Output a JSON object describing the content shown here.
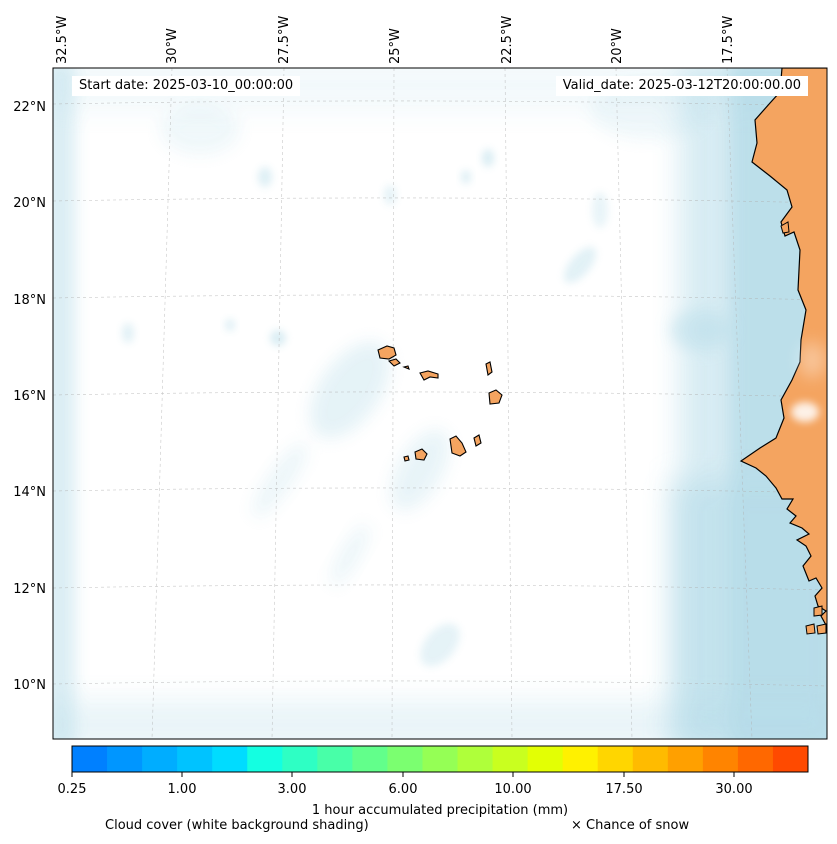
{
  "header": {
    "start_date": "Start date: 2025-03-10_00:00:00",
    "valid_date": "Valid_date: 2025-03-12T20:00:00.00"
  },
  "map": {
    "lon_labels": [
      "32.5°W",
      "30°W",
      "27.5°W",
      "25°W",
      "22.5°W",
      "20°W",
      "17.5°W"
    ],
    "lat_labels": [
      "22°N",
      "20°N",
      "18°N",
      "16°N",
      "14°N",
      "12°N",
      "10°N"
    ],
    "land_color": "#f4a460",
    "cloud_color": "#add8e6",
    "islands": [
      "Santo Antão",
      "São Vicente",
      "Santa Luzia",
      "São Nicolau",
      "Sal",
      "Boa Vista",
      "Maio",
      "Santiago",
      "Fogo",
      "Brava"
    ]
  },
  "colorbar": {
    "colors": [
      "#0080ff",
      "#0096ff",
      "#00adff",
      "#00c3ff",
      "#00dcff",
      "#14ffe1",
      "#2effc4",
      "#48ffa8",
      "#62ff8b",
      "#7bff70",
      "#95ff55",
      "#afff3a",
      "#c9ff1f",
      "#e3ff04",
      "#fff100",
      "#ffd600",
      "#ffbb00",
      "#ffa000",
      "#ff8400",
      "#ff6800",
      "#ff4a00"
    ],
    "tick_labels": [
      "0.25",
      "1.00",
      "3.00",
      "6.00",
      "10.00",
      "17.50",
      "30.00"
    ],
    "label": "1 hour accumulated precipitation (mm)"
  },
  "legend": {
    "cloud_cover": "Cloud cover (white background shading)",
    "snow": "× Chance of snow"
  }
}
